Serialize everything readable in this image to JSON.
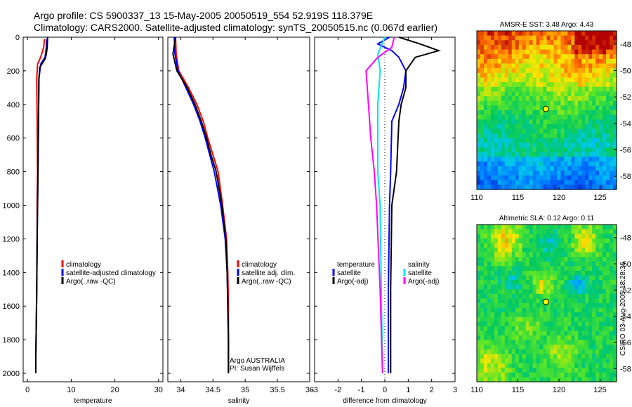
{
  "title_line1": "Argo profile: CS 5900337_13 15-May-2005 20050519_554 52.919S 118.379E",
  "title_line2": "Climatology: CARS2000. Satellite-adjusted climatology: synTS_20050515.nc (0.067d earlier)",
  "footer_credit": "CSIRO 03-Aug-2005 18:28:36",
  "colors": {
    "climatology": "#ff0000",
    "satellite": "#0000ff",
    "argo": "#000000",
    "sat_salinity": "#00e5ee",
    "argo_adj_salinity": "#ff00ff"
  },
  "chart_data": [
    {
      "type": "line",
      "id": "temperature",
      "xlabel": "temperature",
      "xlim": [
        -1,
        31
      ],
      "ylim": [
        2050,
        0
      ],
      "xticks": [
        "0",
        "10",
        "20",
        "30"
      ],
      "yticks": [
        "0",
        "200",
        "400",
        "600",
        "800",
        "1000",
        "1200",
        "1400",
        "1600",
        "1800",
        "2000"
      ],
      "legend": [
        "climatology",
        "satellite-adjusted climatology",
        "Argo(..raw -QC)"
      ],
      "series": [
        {
          "name": "climatology",
          "color": "#ff0000",
          "points": [
            [
              3.9,
              10
            ],
            [
              3.7,
              60
            ],
            [
              3.0,
              120
            ],
            [
              2.3,
              160
            ],
            [
              2.1,
              250
            ],
            [
              2.2,
              500
            ],
            [
              2.3,
              800
            ],
            [
              2.2,
              1000
            ],
            [
              2.2,
              1200
            ],
            [
              2.1,
              1500
            ],
            [
              2.0,
              1700
            ],
            [
              1.9,
              1900
            ],
            [
              1.9,
              2000
            ]
          ]
        },
        {
          "name": "satellite-adjusted climatology",
          "color": "#0000ff",
          "points": [
            [
              4.4,
              10
            ],
            [
              4.3,
              60
            ],
            [
              4.0,
              120
            ],
            [
              3.0,
              160
            ],
            [
              2.6,
              250
            ],
            [
              2.5,
              500
            ],
            [
              2.4,
              800
            ],
            [
              2.3,
              1000
            ],
            [
              2.2,
              1200
            ],
            [
              2.1,
              1500
            ],
            [
              2.0,
              1700
            ],
            [
              1.9,
              1900
            ],
            [
              1.9,
              2000
            ]
          ]
        },
        {
          "name": "Argo(..raw -QC)",
          "color": "#000000",
          "points": [
            [
              4.6,
              0
            ],
            [
              4.5,
              60
            ],
            [
              4.3,
              100
            ],
            [
              4.0,
              130
            ],
            [
              2.8,
              180
            ],
            [
              2.6,
              250
            ],
            [
              2.5,
              500
            ],
            [
              2.4,
              800
            ],
            [
              2.3,
              1000
            ],
            [
              2.2,
              1200
            ],
            [
              2.1,
              1500
            ],
            [
              2.0,
              1700
            ],
            [
              1.9,
              1900
            ],
            [
              1.9,
              2000
            ]
          ]
        }
      ]
    },
    {
      "type": "line",
      "id": "salinity",
      "xlabel": "salinity",
      "xlim": [
        33.8,
        36.0
      ],
      "ylim": [
        2050,
        0
      ],
      "xticks": [
        "34",
        "34.5",
        "35",
        "35.5",
        "36"
      ],
      "legend": [
        "climatology",
        "satellite adj. clim.",
        "Argo(..raw -QC)"
      ],
      "annotation": [
        "Argo AUSTRALIA",
        "PI: Susan Wijffels"
      ],
      "series": [
        {
          "name": "climatology",
          "color": "#ff0000",
          "points": [
            [
              33.92,
              0
            ],
            [
              33.93,
              100
            ],
            [
              33.97,
              200
            ],
            [
              34.12,
              300
            ],
            [
              34.25,
              400
            ],
            [
              34.35,
              500
            ],
            [
              34.42,
              600
            ],
            [
              34.5,
              700
            ],
            [
              34.58,
              800
            ],
            [
              34.65,
              1000
            ],
            [
              34.71,
              1200
            ],
            [
              34.73,
              1400
            ],
            [
              34.74,
              1600
            ],
            [
              34.74,
              1800
            ],
            [
              34.74,
              2000
            ]
          ]
        },
        {
          "name": "satellite adj. clim.",
          "color": "#0000ff",
          "points": [
            [
              33.9,
              0
            ],
            [
              33.91,
              100
            ],
            [
              33.96,
              200
            ],
            [
              34.08,
              300
            ],
            [
              34.2,
              400
            ],
            [
              34.3,
              500
            ],
            [
              34.38,
              600
            ],
            [
              34.45,
              700
            ],
            [
              34.52,
              800
            ],
            [
              34.62,
              1000
            ],
            [
              34.69,
              1200
            ],
            [
              34.72,
              1400
            ],
            [
              34.73,
              1600
            ],
            [
              34.74,
              1800
            ],
            [
              34.74,
              2000
            ]
          ]
        },
        {
          "name": "Argo(..raw -QC)",
          "color": "#000000",
          "points": [
            [
              33.92,
              0
            ],
            [
              33.88,
              100
            ],
            [
              33.94,
              200
            ],
            [
              34.1,
              300
            ],
            [
              34.22,
              400
            ],
            [
              34.32,
              500
            ],
            [
              34.4,
              600
            ],
            [
              34.47,
              700
            ],
            [
              34.55,
              800
            ],
            [
              34.64,
              1000
            ],
            [
              34.7,
              1200
            ],
            [
              34.72,
              1400
            ],
            [
              34.73,
              1600
            ],
            [
              34.74,
              1800
            ],
            [
              34.74,
              2000
            ]
          ]
        }
      ]
    },
    {
      "type": "line",
      "id": "difference",
      "xlabel": "difference from climatology",
      "xlim": [
        -3,
        3
      ],
      "ylim": [
        2050,
        0
      ],
      "xticks": [
        "-3",
        "-2",
        "-1",
        "0",
        "1",
        "2",
        "3"
      ],
      "legend_temperature": [
        "temperature",
        "satellite",
        "Argo(-adj)"
      ],
      "legend_salinity": [
        "salinity",
        "satellite",
        "Argo(-adj)"
      ],
      "series": [
        {
          "name": "temperature satellite",
          "color": "#0000ff",
          "points": [
            [
              0.2,
              0
            ],
            [
              -0.3,
              40
            ],
            [
              0.3,
              80
            ],
            [
              0.6,
              120
            ],
            [
              0.9,
              200
            ],
            [
              0.8,
              300
            ],
            [
              0.6,
              400
            ],
            [
              0.3,
              500
            ],
            [
              0.25,
              800
            ],
            [
              0.2,
              1000
            ],
            [
              0.15,
              1500
            ],
            [
              0.15,
              2000
            ]
          ]
        },
        {
          "name": "temperature Argo(-adj)",
          "color": "#000000",
          "points": [
            [
              0.6,
              0
            ],
            [
              1.5,
              40
            ],
            [
              2.3,
              80
            ],
            [
              1.3,
              120
            ],
            [
              0.9,
              200
            ],
            [
              0.9,
              300
            ],
            [
              0.7,
              400
            ],
            [
              0.6,
              500
            ],
            [
              0.5,
              800
            ],
            [
              0.3,
              1000
            ],
            [
              0.25,
              1500
            ],
            [
              0.25,
              2000
            ]
          ]
        },
        {
          "name": "salinity satellite",
          "color": "#00e5ee",
          "points": [
            [
              0.0,
              0
            ],
            [
              -0.3,
              100
            ],
            [
              -0.2,
              200
            ],
            [
              -0.3,
              400
            ],
            [
              -0.3,
              600
            ],
            [
              -0.3,
              800
            ],
            [
              -0.2,
              1000
            ],
            [
              -0.15,
              1500
            ],
            [
              -0.1,
              2000
            ]
          ]
        },
        {
          "name": "salinity Argo(-adj)",
          "color": "#ff00ff",
          "points": [
            [
              0.4,
              0
            ],
            [
              0.3,
              60
            ],
            [
              -0.3,
              120
            ],
            [
              -0.8,
              200
            ],
            [
              -0.7,
              400
            ],
            [
              -0.6,
              600
            ],
            [
              -0.45,
              800
            ],
            [
              -0.35,
              1000
            ],
            [
              -0.2,
              1500
            ],
            [
              -0.1,
              2000
            ]
          ]
        }
      ]
    },
    {
      "type": "heatmap",
      "id": "sst-map",
      "title": "AMSR-E SST: 3.48 Argo: 4.43",
      "xlim": [
        110,
        127
      ],
      "ylim": [
        -59,
        -47
      ],
      "xticks": [
        "110",
        "115",
        "120",
        "125"
      ],
      "yticks": [
        "-48",
        "-50",
        "-52",
        "-54",
        "-56",
        "-58"
      ],
      "marker": [
        118.4,
        -52.9
      ]
    },
    {
      "type": "heatmap",
      "id": "sla-map",
      "title": "Altimetric SLA: 0.12 Argo: 0.11",
      "xlim": [
        110,
        127
      ],
      "ylim": [
        -59,
        -47
      ],
      "xticks": [
        "110",
        "115",
        "120",
        "125"
      ],
      "yticks": [
        "-48",
        "-50",
        "-52",
        "-54",
        "-56",
        "-58"
      ],
      "marker": [
        118.4,
        -52.9
      ]
    }
  ]
}
